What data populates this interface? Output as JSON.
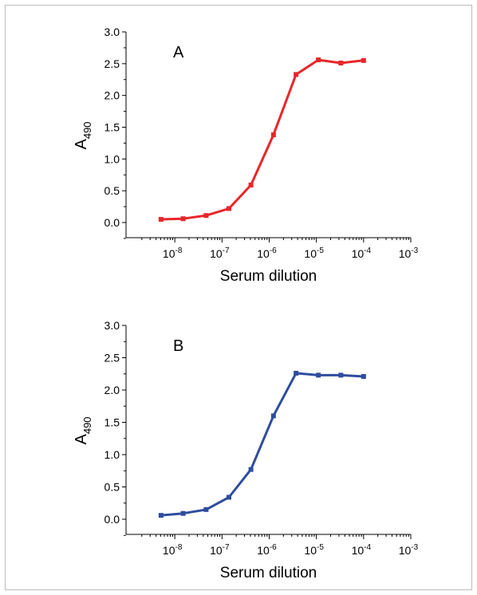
{
  "chart_data": [
    {
      "type": "line",
      "panel_label": "A",
      "xlabel": "Serum dilution",
      "ylabel": "A",
      "ylabel_subscript": "490",
      "xscale": "log",
      "xlim": [
        1e-09,
        0.001
      ],
      "ylim": [
        -0.3,
        3.0
      ],
      "yticks": [
        "0.0",
        "0.5",
        "1.0",
        "1.5",
        "2.0",
        "2.5",
        "3.0"
      ],
      "xticks": [
        {
          "base": "10",
          "exp": "-8"
        },
        {
          "base": "10",
          "exp": "-7"
        },
        {
          "base": "10",
          "exp": "-6"
        },
        {
          "base": "10",
          "exp": "-5"
        },
        {
          "base": "10",
          "exp": "-4"
        },
        {
          "base": "10",
          "exp": "-3"
        }
      ],
      "color": "#e8262a",
      "series": [
        {
          "x": [
            5.1e-09,
            1.5e-08,
            4.6e-08,
            1.4e-07,
            4.1e-07,
            1.23e-06,
            3.7e-06,
            1.1e-05,
            3.3e-05,
            0.0001
          ],
          "y": [
            0.05,
            0.06,
            0.11,
            0.22,
            0.59,
            1.38,
            2.33,
            2.56,
            2.51,
            2.55
          ]
        }
      ]
    },
    {
      "type": "line",
      "panel_label": "B",
      "xlabel": "Serum dilution",
      "ylabel": "A",
      "ylabel_subscript": "490",
      "xscale": "log",
      "xlim": [
        1e-09,
        0.001
      ],
      "ylim": [
        -0.3,
        3.0
      ],
      "yticks": [
        "0.0",
        "0.5",
        "1.0",
        "1.5",
        "2.0",
        "2.5",
        "3.0"
      ],
      "xticks": [
        {
          "base": "10",
          "exp": "-8"
        },
        {
          "base": "10",
          "exp": "-7"
        },
        {
          "base": "10",
          "exp": "-6"
        },
        {
          "base": "10",
          "exp": "-5"
        },
        {
          "base": "10",
          "exp": "-4"
        },
        {
          "base": "10",
          "exp": "-3"
        }
      ],
      "color": "#2f4d9e",
      "series": [
        {
          "x": [
            5.1e-09,
            1.5e-08,
            4.6e-08,
            1.4e-07,
            4.1e-07,
            1.23e-06,
            3.7e-06,
            1.1e-05,
            3.3e-05,
            0.0001
          ],
          "y": [
            0.06,
            0.09,
            0.15,
            0.34,
            0.77,
            1.6,
            2.26,
            2.23,
            2.23,
            2.21
          ]
        }
      ]
    }
  ]
}
